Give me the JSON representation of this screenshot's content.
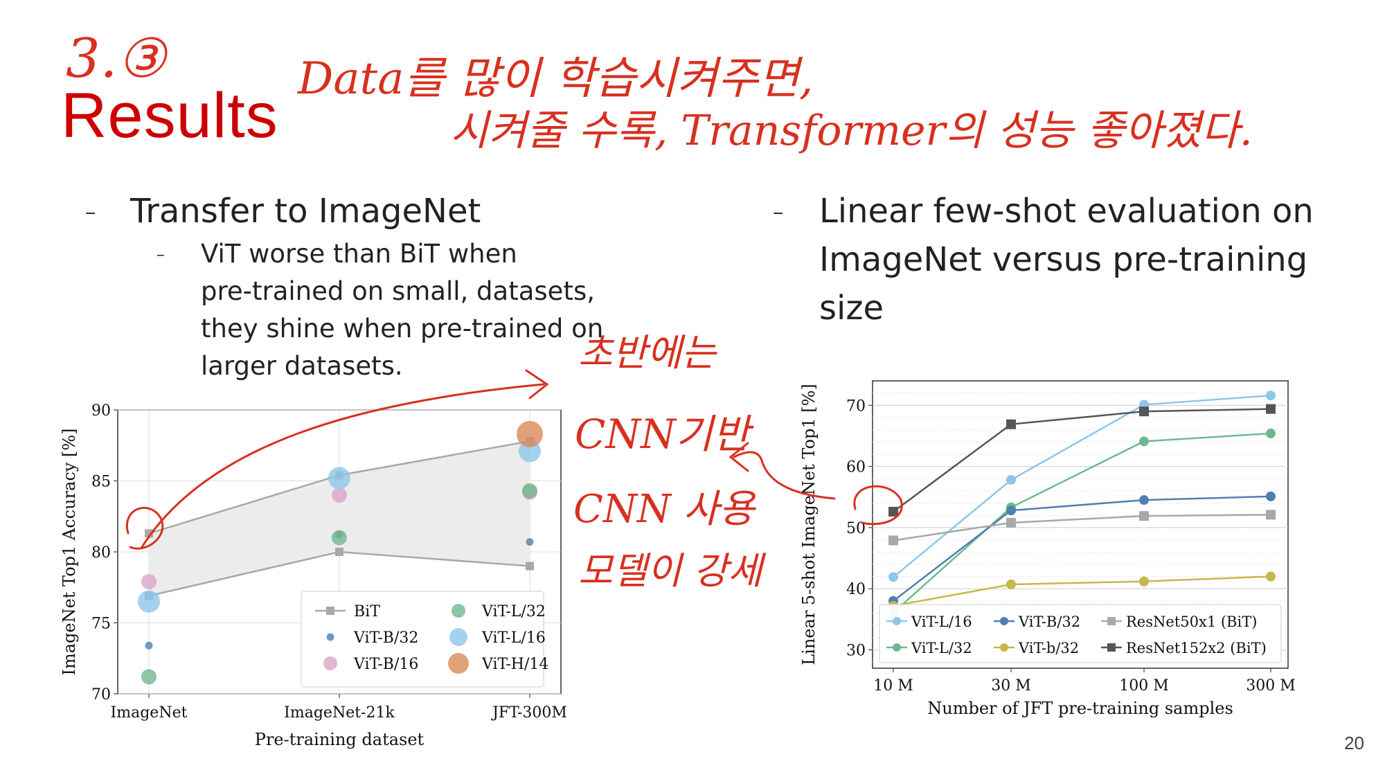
{
  "slide": {
    "title": "Results",
    "page_number": "20",
    "handwritten": {
      "number": "3.③",
      "line1": "Data를 많이 학습시켜주면,",
      "line2": "시켜줄 수록, Transformer의 성능 좋아졌다.",
      "side1": "초반에는",
      "side2": "CNN기반",
      "side3": "CNN 사용",
      "side4": "모델이 강세"
    }
  },
  "left": {
    "bullet": "-",
    "heading": "Transfer to ImageNet",
    "sub_bullet": "-",
    "sub_lines": [
      "ViT worse than BiT when",
      "pre-trained on small, datasets,",
      "they shine when pre-trained on",
      "larger datasets."
    ]
  },
  "right": {
    "bullet": "-",
    "heading_lines": [
      "Linear few-shot evaluation on",
      "ImageNet versus pre-training",
      "size"
    ]
  },
  "colors": {
    "bit": "#a8a8a8",
    "vit_b32": "#4f7fb0",
    "vit_b16": "#d9a6c6",
    "vit_l32": "#6fb88f",
    "vit_l16": "#8dc6ea",
    "vit_h14": "#d98a5a",
    "vit_b32_line": "#c6b74a",
    "resnet152": "#555555",
    "annotation": "#d8301f"
  },
  "chart_data": [
    {
      "type": "scatter",
      "xlabel": "Pre-training dataset",
      "ylabel": "ImageNet Top1 Accuracy [%]",
      "categories": [
        "ImageNet",
        "ImageNet-21k",
        "JFT-300M"
      ],
      "ylim": [
        70,
        90
      ],
      "yticks": [
        "70",
        "75",
        "80",
        "85",
        "90"
      ],
      "grid": true,
      "legend_position": "lower-right",
      "bit_band": {
        "name": "BiT",
        "upper": [
          81.3,
          85.4,
          87.8
        ],
        "lower": [
          76.9,
          80.0,
          79.0
        ]
      },
      "series": [
        {
          "name": "ViT-B/32",
          "values": [
            73.4,
            81.2,
            80.7
          ],
          "size": "small"
        },
        {
          "name": "ViT-B/16",
          "values": [
            77.9,
            84.0,
            84.2
          ],
          "size": "medium"
        },
        {
          "name": "ViT-L/32",
          "values": [
            71.2,
            81.0,
            84.3
          ],
          "size": "medium"
        },
        {
          "name": "ViT-L/16",
          "values": [
            76.5,
            85.2,
            87.1
          ],
          "size": "large"
        },
        {
          "name": "ViT-H/14",
          "values": [
            null,
            null,
            88.3
          ],
          "size": "xlarge"
        }
      ],
      "legend": [
        "BiT",
        "ViT-B/32",
        "ViT-B/16",
        "ViT-L/32",
        "ViT-L/16",
        "ViT-H/14"
      ]
    },
    {
      "type": "line",
      "xlabel": "Number of JFT pre-training samples",
      "ylabel": "Linear 5-shot ImageNet Top1 [%]",
      "x": [
        "10 M",
        "30 M",
        "100 M",
        "300 M"
      ],
      "ylim": [
        27,
        74
      ],
      "yticks": [
        "30",
        "40",
        "50",
        "60",
        "70"
      ],
      "grid": true,
      "legend_position": "bottom",
      "series": [
        {
          "name": "ViT-L/16",
          "values": [
            41.9,
            57.8,
            70.1,
            71.6
          ],
          "marker": "circle"
        },
        {
          "name": "ViT-L/32",
          "values": [
            36.1,
            53.3,
            64.1,
            65.4
          ],
          "marker": "circle"
        },
        {
          "name": "ViT-B/32",
          "values": [
            38.0,
            52.8,
            54.5,
            55.1
          ],
          "marker": "circle"
        },
        {
          "name": "ViT-b/32",
          "values": [
            37.2,
            40.7,
            41.2,
            42.0
          ],
          "marker": "circle"
        },
        {
          "name": "ResNet50x1 (BiT)",
          "values": [
            47.9,
            50.8,
            51.9,
            52.1
          ],
          "marker": "square"
        },
        {
          "name": "ResNet152x2 (BiT)",
          "values": [
            52.6,
            66.9,
            69.0,
            69.4
          ],
          "marker": "square"
        }
      ],
      "legend": [
        "ViT-L/16",
        "ViT-B/32",
        "ResNet50x1 (BiT)",
        "ViT-L/32",
        "ViT-b/32",
        "ResNet152x2 (BiT)"
      ]
    }
  ]
}
